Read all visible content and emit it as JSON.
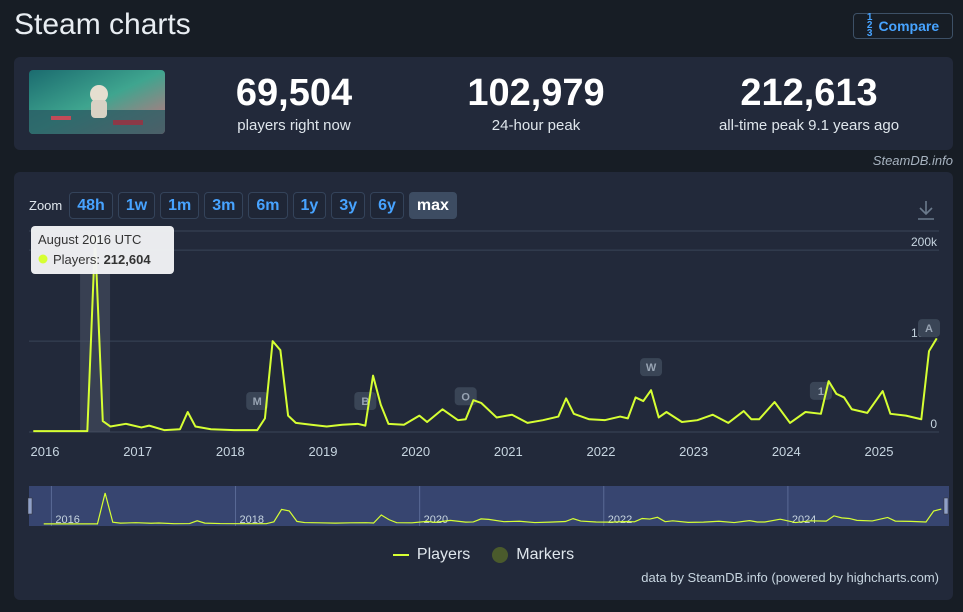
{
  "title": "Steam charts",
  "compare": {
    "label": "Compare",
    "frac_top": "1",
    "frac_mid": "2",
    "frac_bot": "3"
  },
  "stats": [
    {
      "value": "69,504",
      "label": "players right now"
    },
    {
      "value": "102,979",
      "label": "24-hour peak"
    },
    {
      "value": "212,613",
      "label": "all-time peak 9.1 years ago"
    }
  ],
  "credit_top": "SteamDB.info",
  "zoom": {
    "label": "Zoom",
    "buttons": [
      "48h",
      "1w",
      "1m",
      "3m",
      "6m",
      "1y",
      "3y",
      "6y",
      "max"
    ],
    "active": "max"
  },
  "tooltip": {
    "title": "August 2016 UTC",
    "series": "Players:",
    "value": "212,604"
  },
  "legend": {
    "players": "Players",
    "markers": "Markers"
  },
  "credit_bottom": "data by SteamDB.info (powered by highcharts.com)",
  "colors": {
    "line": "#d6ff33",
    "marker": "#4a5a2c",
    "bg": "#22293a",
    "navigator": "#3b4a7a"
  },
  "chart_data": {
    "type": "line",
    "x_axis": "date",
    "y_ticks": [
      "0",
      "100k",
      "200k"
    ],
    "ylim": [
      0,
      220000
    ],
    "x_ticks": [
      "2016",
      "2017",
      "2018",
      "2019",
      "2020",
      "2021",
      "2022",
      "2023",
      "2024",
      "2025"
    ],
    "navigator_ticks": [
      "2016",
      "2018",
      "2020",
      "2022",
      "2024"
    ],
    "series": [
      {
        "name": "Players",
        "x": [
          "2015-12",
          "2016-06",
          "2016-07",
          "2016-08",
          "2016-09",
          "2016-10",
          "2016-12",
          "2017-02",
          "2017-03",
          "2017-05",
          "2017-07",
          "2017-08",
          "2017-09",
          "2017-11",
          "2018-02",
          "2018-05",
          "2018-06",
          "2018-07",
          "2018-08",
          "2018-09",
          "2018-10",
          "2018-12",
          "2019-02",
          "2019-04",
          "2019-06",
          "2019-07",
          "2019-08",
          "2019-09",
          "2019-10",
          "2019-12",
          "2020-02",
          "2020-03",
          "2020-05",
          "2020-07",
          "2020-08",
          "2020-09",
          "2020-10",
          "2020-12",
          "2021-02",
          "2021-04",
          "2021-06",
          "2021-08",
          "2021-09",
          "2021-10",
          "2021-12",
          "2022-02",
          "2022-04",
          "2022-05",
          "2022-06",
          "2022-07",
          "2022-08",
          "2022-09",
          "2022-10",
          "2022-12",
          "2023-02",
          "2023-04",
          "2023-06",
          "2023-08",
          "2023-09",
          "2023-10",
          "2023-12",
          "2024-02",
          "2024-04",
          "2024-06",
          "2024-07",
          "2024-08",
          "2024-09",
          "2024-10",
          "2024-12",
          "2025-02",
          "2025-03",
          "2025-05",
          "2025-07",
          "2025-08",
          "2025-09"
        ],
        "y": [
          1000,
          1000,
          1000,
          212604,
          12000,
          6000,
          9000,
          5000,
          7000,
          2000,
          3000,
          22000,
          6000,
          3000,
          2000,
          2000,
          15000,
          100000,
          90000,
          18000,
          10000,
          8000,
          6000,
          8000,
          9000,
          7000,
          62000,
          30000,
          9000,
          8000,
          18000,
          11000,
          25000,
          13000,
          14000,
          35000,
          32000,
          16000,
          19000,
          10000,
          13000,
          17000,
          37000,
          20000,
          14000,
          13000,
          17000,
          15000,
          38000,
          34000,
          46000,
          16000,
          22000,
          11000,
          13000,
          19000,
          10000,
          23000,
          14000,
          14000,
          33000,
          10000,
          22000,
          20000,
          56000,
          42000,
          38000,
          25000,
          21000,
          45000,
          20000,
          18000,
          14000,
          89000,
          102979
        ]
      }
    ],
    "markers": [
      {
        "label": "M",
        "x": "2018-05"
      },
      {
        "label": "B",
        "x": "2019-07"
      },
      {
        "label": "O",
        "x": "2020-08"
      },
      {
        "label": "W",
        "x": "2022-08"
      },
      {
        "label": "1",
        "x": "2024-06"
      },
      {
        "label": "A",
        "x": "2025-08"
      }
    ],
    "highlight": {
      "x": "2016-08",
      "y": 212604
    }
  }
}
